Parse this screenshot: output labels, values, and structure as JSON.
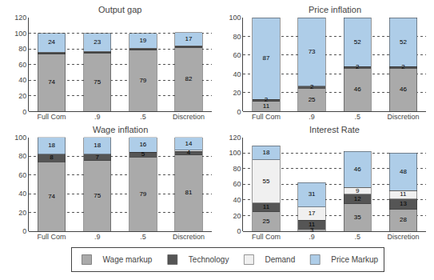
{
  "chart_data": [
    {
      "type": "bar",
      "title": "Output gap",
      "categories": [
        "Full Com",
        ".9",
        ".5",
        "Discretion"
      ],
      "series": [
        {
          "name": "Wage markup",
          "color": "#aaaaaa",
          "values": [
            74,
            75,
            79,
            82
          ],
          "value_labels": [
            "74",
            "75",
            "79",
            "82"
          ]
        },
        {
          "name": "Technology",
          "color": "#555555",
          "values": [
            1,
            1,
            1,
            1
          ],
          "value_labels": [
            null,
            null,
            null,
            null
          ]
        },
        {
          "name": "Demand",
          "color": "#f0f0f0",
          "values": [
            1,
            1,
            1,
            1
          ],
          "value_labels": [
            null,
            null,
            null,
            null
          ]
        },
        {
          "name": "Price Markup",
          "color": "#aecde8",
          "values": [
            24,
            23,
            19,
            17
          ],
          "value_labels": [
            "24",
            "23",
            "19",
            "17"
          ]
        }
      ],
      "ylim": [
        0,
        120
      ],
      "yticks": [
        0,
        20,
        40,
        60,
        80,
        100,
        120
      ],
      "stacked": true,
      "data_labels": true,
      "grid": true,
      "legend": "bottom"
    },
    {
      "type": "bar",
      "title": "Price inflation",
      "categories": [
        "Full Com",
        ".9",
        ".5",
        "Discretion"
      ],
      "series": [
        {
          "name": "Wage markup",
          "color": "#aaaaaa",
          "values": [
            11,
            25,
            46,
            46
          ],
          "value_labels": [
            "11",
            "25",
            "46",
            "46"
          ]
        },
        {
          "name": "Technology",
          "color": "#555555",
          "values": [
            2,
            2,
            2,
            2
          ],
          "value_labels": [
            "2",
            "2",
            "2",
            "2"
          ]
        },
        {
          "name": "Demand",
          "color": "#f0f0f0",
          "values": [
            0,
            0,
            0,
            0
          ],
          "value_labels": [
            null,
            null,
            null,
            null
          ]
        },
        {
          "name": "Price Markup",
          "color": "#aecde8",
          "values": [
            87,
            73,
            52,
            52
          ],
          "value_labels": [
            "87",
            "73",
            "52",
            "52"
          ]
        }
      ],
      "ylim": [
        0,
        100
      ],
      "yticks": [
        0,
        20,
        40,
        60,
        80,
        100
      ],
      "stacked": true,
      "data_labels": true,
      "grid": true
    },
    {
      "type": "bar",
      "title": "Wage inflation",
      "categories": [
        "Full Com",
        ".9",
        ".5",
        "Discretion"
      ],
      "series": [
        {
          "name": "Wage markup",
          "color": "#aaaaaa",
          "values": [
            74,
            75,
            79,
            81
          ],
          "value_labels": [
            "74",
            "75",
            "79",
            "81"
          ]
        },
        {
          "name": "Technology",
          "color": "#555555",
          "values": [
            8,
            7,
            5,
            4
          ],
          "value_labels": [
            "8",
            "7",
            "5",
            "4"
          ]
        },
        {
          "name": "Demand",
          "color": "#f0f0f0",
          "values": [
            0,
            0,
            0,
            1
          ],
          "value_labels": [
            null,
            null,
            null,
            null
          ]
        },
        {
          "name": "Price Markup",
          "color": "#aecde8",
          "values": [
            18,
            18,
            16,
            14
          ],
          "value_labels": [
            "18",
            "18",
            "16",
            "14"
          ]
        }
      ],
      "ylim": [
        0,
        100
      ],
      "yticks": [
        0,
        20,
        40,
        60,
        80,
        100
      ],
      "stacked": true,
      "data_labels": true,
      "grid": true
    },
    {
      "type": "bar",
      "title": "Interest Rate",
      "categories": [
        "Full Com",
        ".9",
        ".5",
        "Discretion"
      ],
      "series": [
        {
          "name": "Wage markup",
          "color": "#aaaaaa",
          "values": [
            25,
            3,
            35,
            28
          ],
          "value_labels": [
            "25",
            "3",
            "35",
            "28"
          ]
        },
        {
          "name": "Technology",
          "color": "#555555",
          "values": [
            11,
            11,
            12,
            13
          ],
          "value_labels": [
            "11",
            "11",
            "12",
            "13"
          ]
        },
        {
          "name": "Demand",
          "color": "#f0f0f0",
          "values": [
            55,
            17,
            9,
            11
          ],
          "value_labels": [
            "55",
            "17",
            "9",
            "11"
          ]
        },
        {
          "name": "Price Markup",
          "color": "#aecde8",
          "values": [
            18,
            31,
            46,
            48
          ],
          "value_labels": [
            "18",
            "31",
            "46",
            "48"
          ]
        }
      ],
      "ylim": [
        0,
        120
      ],
      "yticks": [
        0,
        20,
        40,
        60,
        80,
        100,
        120
      ],
      "stacked": true,
      "data_labels": true,
      "grid": true
    }
  ]
}
